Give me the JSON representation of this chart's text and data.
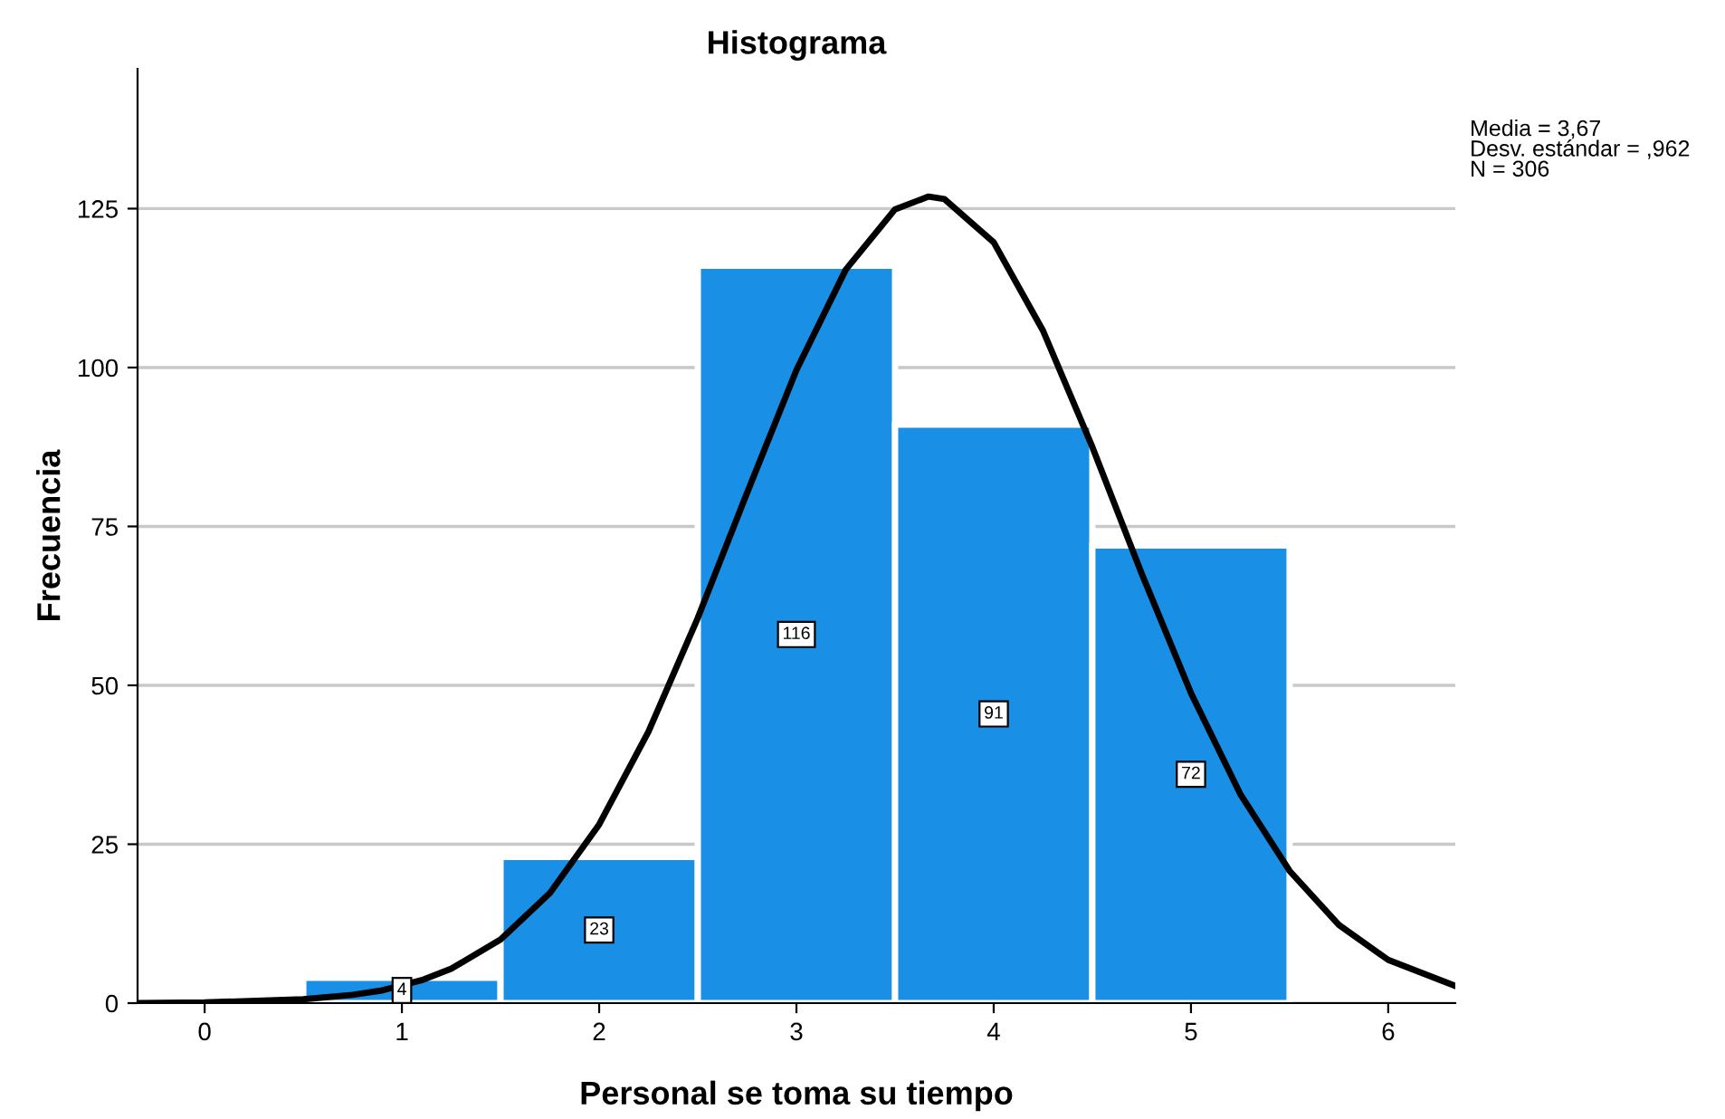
{
  "chart_data": {
    "type": "histogram",
    "title": "Histograma",
    "xlabel": "Personal se toma su tiempo",
    "ylabel": "Frecuencia",
    "bins": [
      0.5,
      1.5,
      2.5,
      3.5,
      4.5,
      5.5
    ],
    "values": [
      4,
      23,
      116,
      91,
      72
    ],
    "color": "#1a8fe6",
    "value_labels": [
      "4",
      "23",
      "116",
      "91",
      "72"
    ],
    "series": [
      {
        "type": "line",
        "color": "#000000",
        "x": [
          -0.34,
          0,
          0.5,
          0.75,
          0.9,
          1.1,
          1.25,
          1.5,
          1.75,
          2,
          2.25,
          2.5,
          2.75,
          3,
          3.25,
          3.5,
          3.67,
          3.75,
          4,
          4.25,
          4.5,
          4.75,
          5,
          5.25,
          5.5,
          5.75,
          6,
          6.34
        ],
        "values": [
          0.0,
          0.1,
          0.6,
          1.3,
          2.0,
          3.6,
          5.4,
          10.0,
          17.3,
          28.1,
          42.7,
          60.6,
          80.3,
          99.6,
          115.4,
          124.9,
          126.9,
          126.5,
          119.7,
          105.8,
          87.5,
          67.6,
          48.8,
          32.9,
          20.8,
          12.3,
          6.8,
          2.7
        ]
      }
    ],
    "xlim": [
      -0.34,
      6.34
    ],
    "xticks": [
      0,
      1,
      2,
      3,
      4,
      5,
      6
    ],
    "ylim": [
      0,
      147
    ],
    "yticks": [
      0,
      25,
      50,
      75,
      100,
      125
    ],
    "grid": "y",
    "annotations": [
      "Media = 3,67\nDesv. estándar = ,962\nN = 306"
    ]
  }
}
